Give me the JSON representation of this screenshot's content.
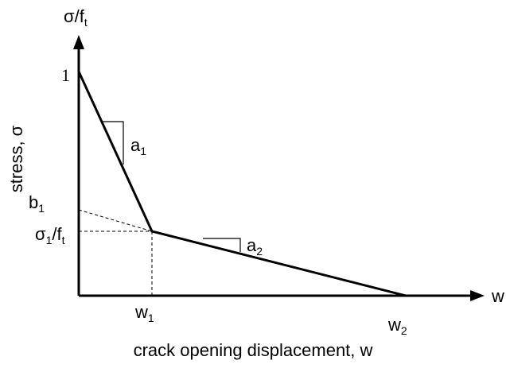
{
  "y_axis": {
    "symbol": [
      {
        "text": "σ/f",
        "sub": "t"
      }
    ],
    "top_value": "1",
    "title": "stress, σ"
  },
  "x_axis": {
    "symbol": "w",
    "title": "crack opening displacement, w"
  },
  "labels": [
    {
      "name": "a1",
      "segments": [
        {
          "text": "a",
          "sub": "1"
        }
      ]
    },
    {
      "name": "b1",
      "segments": [
        {
          "text": "b",
          "sub": "1"
        }
      ]
    },
    {
      "name": "sigma1",
      "segments": [
        {
          "text": "σ",
          "sub": "1"
        },
        {
          "text": "/f",
          "sub": "t"
        }
      ]
    },
    {
      "name": "a2",
      "segments": [
        {
          "text": "a",
          "sub": "2"
        }
      ]
    },
    {
      "name": "w1",
      "segments": [
        {
          "text": "w",
          "sub": "1"
        }
      ]
    },
    {
      "name": "w2",
      "segments": [
        {
          "text": "w",
          "sub": "2"
        }
      ]
    }
  ]
}
